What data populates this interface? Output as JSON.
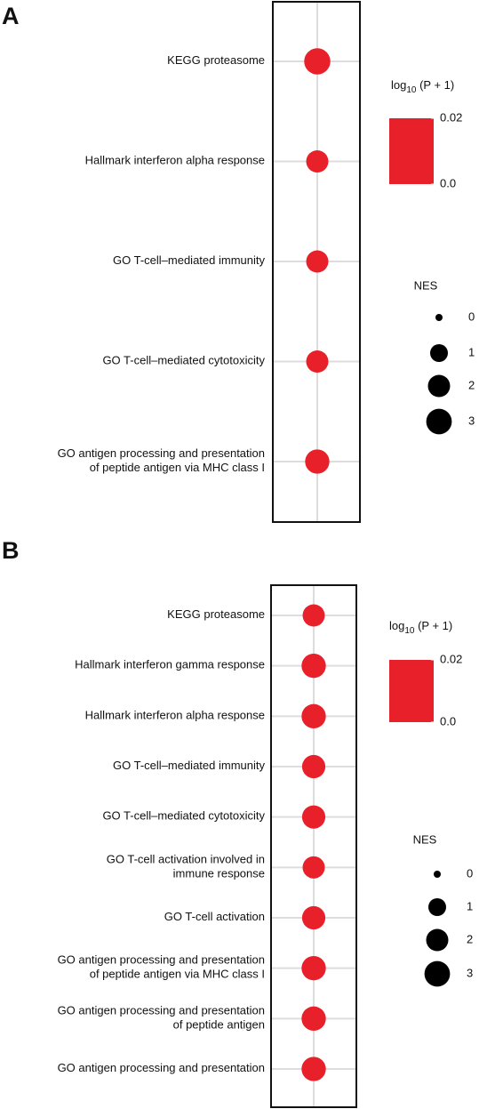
{
  "chart_data": [
    {
      "type": "dot",
      "panel_label": "A",
      "categories": [
        [
          "KEGG proteasome"
        ],
        [
          "Hallmark interferon alpha response"
        ],
        [
          "GO T-cell–mediated immunity"
        ],
        [
          "GO T-cell–mediated cytotoxicity"
        ],
        [
          "GO antigen processing and presentation",
          "of peptide antigen via MHC class I"
        ]
      ],
      "values": [
        3.2,
        2.0,
        2.0,
        2.0,
        2.6
      ],
      "color": "#e8202a",
      "colorbar_title": [
        "log",
        "10",
        " (P + 1)"
      ],
      "clim": [
        0,
        0.02
      ],
      "cticks": [
        {
          "value": 0,
          "label": "0.0"
        },
        0.02
      ],
      "size_title": "NES",
      "size_ticks": [
        0,
        1,
        2,
        3
      ],
      "grid": true
    },
    {
      "type": "dot",
      "panel_label": "B",
      "categories": [
        [
          "KEGG proteasome"
        ],
        [
          "Hallmark interferon gamma response"
        ],
        [
          "Hallmark interferon alpha response"
        ],
        [
          "GO T-cell–mediated immunity"
        ],
        [
          "GO T-cell–mediated cytotoxicity"
        ],
        [
          "GO T-cell activation involved in",
          "immune response"
        ],
        [
          "GO T-cell activation"
        ],
        [
          "GO antigen processing and presentation",
          "of peptide antigen via MHC class I"
        ],
        [
          "GO antigen processing and presentation",
          "of peptide antigen"
        ],
        [
          "GO antigen processing and presentation"
        ]
      ],
      "values": [
        2.0,
        2.6,
        2.6,
        2.3,
        2.3,
        2.0,
        2.3,
        2.6,
        2.6,
        2.6
      ],
      "color": "#e8202a",
      "colorbar_title": [
        "log",
        "10",
        " (P + 1)"
      ],
      "clim": [
        0,
        0.02
      ],
      "cticks": [
        {
          "value": 0,
          "label": "0.0"
        },
        0.02
      ],
      "size_title": "NES",
      "size_ticks": [
        0,
        1,
        2,
        3
      ],
      "grid": true
    }
  ]
}
